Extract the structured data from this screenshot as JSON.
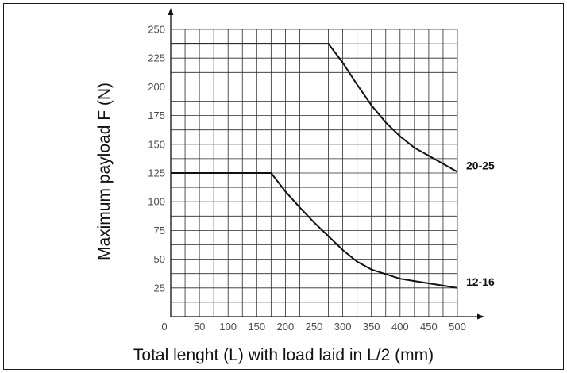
{
  "chart_data": {
    "type": "line",
    "xlabel": "Total lenght (L) with load laid in L/2 (mm)",
    "ylabel": "Maximum payload F (N)",
    "xlim": [
      0,
      500
    ],
    "ylim": [
      0,
      250
    ],
    "x_minor_step": 25,
    "y_minor_step": 12.5,
    "grid": true,
    "x_ticks": [
      {
        "value": 0,
        "label": "0"
      },
      {
        "value": 50,
        "label": "50"
      },
      {
        "value": 100,
        "label": "100"
      },
      {
        "value": 150,
        "label": "150"
      },
      {
        "value": 200,
        "label": "200"
      },
      {
        "value": 250,
        "label": "250"
      },
      {
        "value": 300,
        "label": "300"
      },
      {
        "value": 350,
        "label": "350"
      },
      {
        "value": 400,
        "label": "400"
      },
      {
        "value": 450,
        "label": "450"
      },
      {
        "value": 500,
        "label": "500"
      }
    ],
    "y_ticks": [
      {
        "value": 25,
        "label": "25"
      },
      {
        "value": 50,
        "label": "50"
      },
      {
        "value": 75,
        "label": "75"
      },
      {
        "value": 100,
        "label": "100"
      },
      {
        "value": 125,
        "label": "125"
      },
      {
        "value": 150,
        "label": "150"
      },
      {
        "value": 175,
        "label": "175"
      },
      {
        "value": 200,
        "label": "200"
      },
      {
        "value": 225,
        "label": "225"
      },
      {
        "value": 250,
        "label": "250"
      }
    ],
    "series": [
      {
        "name": "20-25",
        "points": [
          [
            0,
            237.5
          ],
          [
            275,
            237.5
          ],
          [
            300,
            221
          ],
          [
            325,
            202
          ],
          [
            350,
            184
          ],
          [
            375,
            169
          ],
          [
            400,
            157
          ],
          [
            425,
            147
          ],
          [
            450,
            140
          ],
          [
            475,
            133
          ],
          [
            500,
            126
          ]
        ]
      },
      {
        "name": "12-16",
        "points": [
          [
            0,
            125
          ],
          [
            175,
            125
          ],
          [
            200,
            109
          ],
          [
            225,
            95
          ],
          [
            250,
            82
          ],
          [
            275,
            70
          ],
          [
            300,
            58
          ],
          [
            325,
            48
          ],
          [
            350,
            41
          ],
          [
            375,
            37
          ],
          [
            400,
            33
          ],
          [
            425,
            31
          ],
          [
            450,
            29
          ],
          [
            475,
            27
          ],
          [
            500,
            25
          ]
        ]
      }
    ]
  }
}
